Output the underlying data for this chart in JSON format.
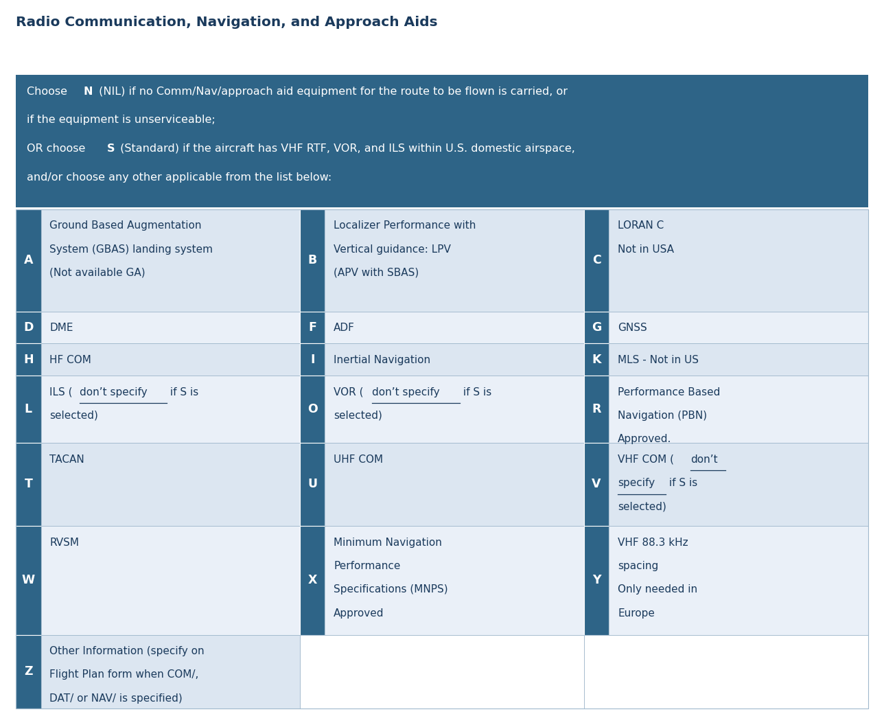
{
  "title": "Radio Communication, Navigation, and Approach Aids",
  "header_line1_parts": [
    [
      "Choose ",
      false
    ],
    [
      "N",
      true
    ],
    [
      " (NIL) if no Comm/Nav/approach aid equipment for the route to be flown is carried, or",
      false
    ]
  ],
  "header_line2": "if the equipment is unserviceable;",
  "header_line3_parts": [
    [
      "OR choose ",
      false
    ],
    [
      "S",
      true
    ],
    [
      " (Standard) if the aircraft has VHF RTF, VOR, and ILS within U.S. domestic airspace,",
      false
    ]
  ],
  "header_line4": "and/or choose any other applicable from the list below:",
  "dark_bg": "#2e6487",
  "dark_cell_bg": "#2e6487",
  "row_bg_1": "#dce6f1",
  "row_bg_2": "#eaf0f8",
  "white_bg": "#ffffff",
  "title_color": "#1a3a5c",
  "header_text_color": "#ffffff",
  "cell_text_color": "#1a3a5c",
  "rows": [
    {
      "cells": [
        {
          "letter": "A",
          "text": "Ground Based Augmentation\nSystem (GBAS) landing system\n(Not available GA)",
          "underline_phrase": ""
        },
        {
          "letter": "B",
          "text": "Localizer Performance with\nVertical guidance: LPV\n(APV with SBAS)",
          "underline_phrase": ""
        },
        {
          "letter": "C",
          "text": "LORAN C\nNot in USA",
          "underline_phrase": ""
        }
      ],
      "bg": "#dce6f1"
    },
    {
      "cells": [
        {
          "letter": "D",
          "text": "DME",
          "underline_phrase": ""
        },
        {
          "letter": "F",
          "text": "ADF",
          "underline_phrase": ""
        },
        {
          "letter": "G",
          "text": "GNSS",
          "underline_phrase": ""
        }
      ],
      "bg": "#eaf0f8"
    },
    {
      "cells": [
        {
          "letter": "H",
          "text": "HF COM",
          "underline_phrase": ""
        },
        {
          "letter": "I",
          "text": "Inertial Navigation",
          "underline_phrase": ""
        },
        {
          "letter": "K",
          "text": "MLS - Not in US",
          "underline_phrase": ""
        }
      ],
      "bg": "#dce6f1"
    },
    {
      "cells": [
        {
          "letter": "L",
          "text": "ILS (don’t specify if S is\nselected)",
          "underline_phrase": "don’t specify"
        },
        {
          "letter": "O",
          "text": "VOR (don’t specify if S is\nselected)",
          "underline_phrase": "don’t specify"
        },
        {
          "letter": "R",
          "text": "Performance Based\nNavigation (PBN)\nApproved.",
          "underline_phrase": ""
        }
      ],
      "bg": "#eaf0f8"
    },
    {
      "cells": [
        {
          "letter": "T",
          "text": "TACAN",
          "underline_phrase": ""
        },
        {
          "letter": "U",
          "text": "UHF COM",
          "underline_phrase": ""
        },
        {
          "letter": "V",
          "text": "VHF COM (don’t\nspecify if S is\nselected)",
          "underline_phrase": "don’t\nspecify"
        }
      ],
      "bg": "#dce6f1"
    },
    {
      "cells": [
        {
          "letter": "W",
          "text": "RVSM",
          "underline_phrase": ""
        },
        {
          "letter": "X",
          "text": "Minimum Navigation\nPerformance\nSpecifications (MNPS)\nApproved",
          "underline_phrase": ""
        },
        {
          "letter": "Y",
          "text": "VHF 88.3 kHz\nspacing\nOnly needed in\nEurope",
          "underline_phrase": ""
        }
      ],
      "bg": "#eaf0f8"
    },
    {
      "cells": [
        {
          "letter": "Z",
          "text": "Other Information (specify on\nFlight Plan form when COM/,\nDAT/ or NAV/ is specified)",
          "underline_phrase": ""
        },
        null,
        null
      ],
      "bg": "#dce6f1"
    }
  ],
  "row_heights_rel": [
    3.2,
    1.0,
    1.0,
    2.1,
    2.6,
    3.4,
    2.3
  ]
}
